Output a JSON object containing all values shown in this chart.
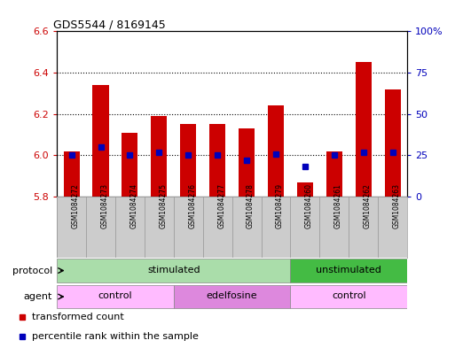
{
  "title": "GDS5544 / 8169145",
  "samples": [
    "GSM1084272",
    "GSM1084273",
    "GSM1084274",
    "GSM1084275",
    "GSM1084276",
    "GSM1084277",
    "GSM1084278",
    "GSM1084279",
    "GSM1084260",
    "GSM1084261",
    "GSM1084262",
    "GSM1084263"
  ],
  "bar_bottom": 5.8,
  "bar_tops": [
    6.02,
    6.34,
    6.11,
    6.19,
    6.15,
    6.15,
    6.13,
    6.24,
    5.87,
    6.02,
    6.45,
    6.32
  ],
  "percentile_values": [
    25,
    30,
    25,
    27,
    25,
    25,
    22,
    26,
    18,
    25,
    27,
    27
  ],
  "ylim_left": [
    5.8,
    6.6
  ],
  "ylim_right": [
    0,
    100
  ],
  "yticks_left": [
    5.8,
    6.0,
    6.2,
    6.4,
    6.6
  ],
  "yticks_right": [
    0,
    25,
    50,
    75,
    100
  ],
  "ytick_labels_right": [
    "0",
    "25",
    "50",
    "75",
    "100%"
  ],
  "bar_color": "#cc0000",
  "percentile_color": "#0000bb",
  "dotted_line_color": "#000000",
  "dotted_lines": [
    6.0,
    6.2,
    6.4
  ],
  "protocol_groups": [
    {
      "label": "stimulated",
      "start": 0,
      "end": 8,
      "color": "#aaddaa"
    },
    {
      "label": "unstimulated",
      "start": 8,
      "end": 12,
      "color": "#44bb44"
    }
  ],
  "agent_groups": [
    {
      "label": "control",
      "start": 0,
      "end": 4,
      "color": "#ffbbff"
    },
    {
      "label": "edelfosine",
      "start": 4,
      "end": 8,
      "color": "#dd88dd"
    },
    {
      "label": "control",
      "start": 8,
      "end": 12,
      "color": "#ffbbff"
    }
  ],
  "protocol_label": "protocol",
  "agent_label": "agent",
  "legend_items": [
    {
      "label": "transformed count",
      "color": "#cc0000"
    },
    {
      "label": "percentile rank within the sample",
      "color": "#0000bb"
    }
  ],
  "bg_color": "#ffffff",
  "tick_color_left": "#cc0000",
  "tick_color_right": "#0000bb",
  "bar_width": 0.55,
  "sample_bg_color": "#cccccc",
  "sample_strip_edge": "#999999"
}
